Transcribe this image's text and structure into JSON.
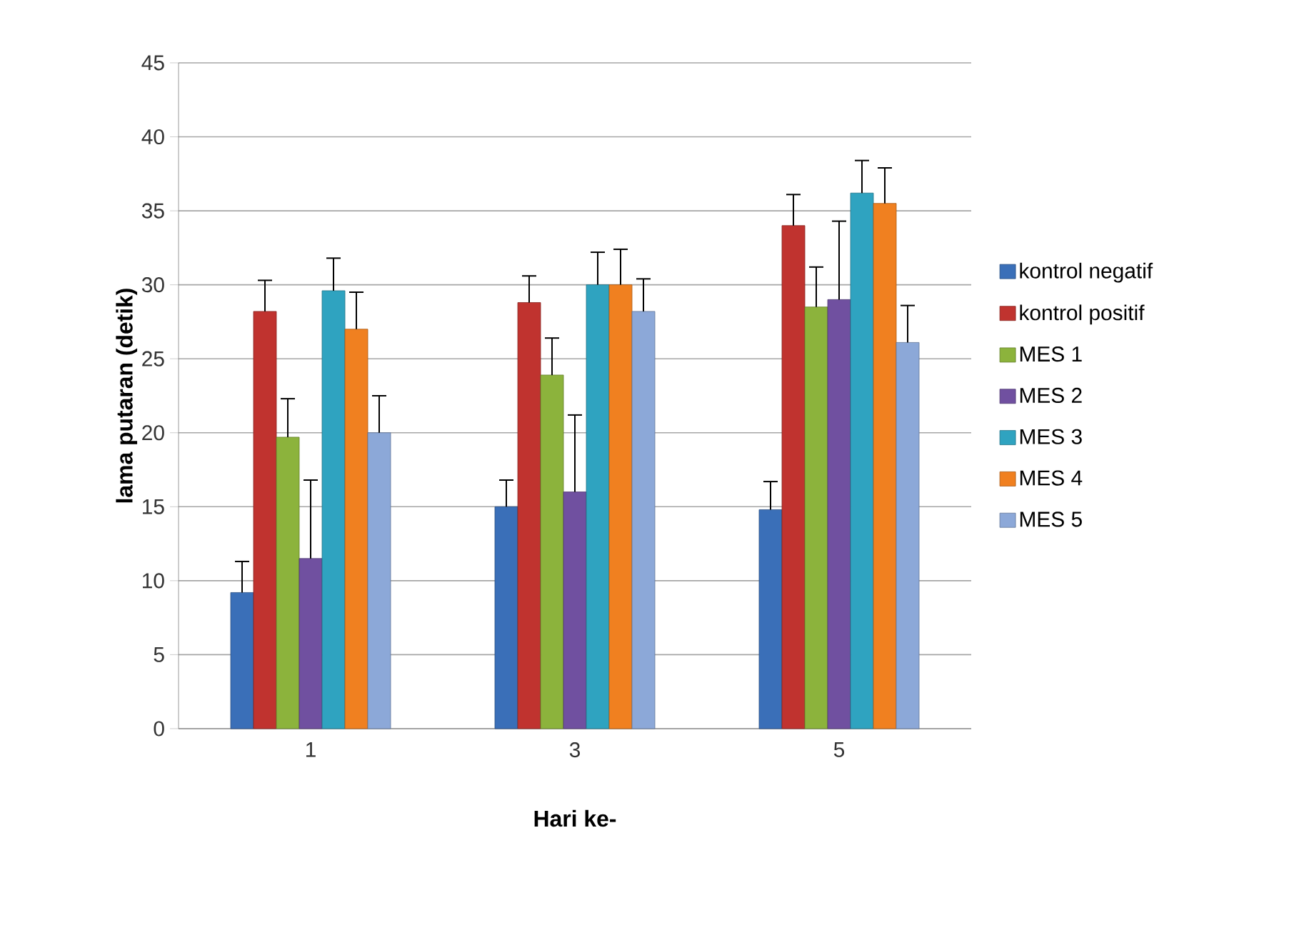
{
  "chart_data": {
    "type": "bar",
    "xlabel": "Hari ke-",
    "ylabel": "lama putaran  (detik)",
    "categories": [
      "1",
      "3",
      "5"
    ],
    "ylim": [
      0,
      45
    ],
    "yticks": [
      0,
      5,
      10,
      15,
      20,
      25,
      30,
      35,
      40,
      45
    ],
    "grid": "y",
    "legend": "right",
    "series": [
      {
        "name": "kontrol negatif",
        "color": "#3a6fb8",
        "values": [
          9.2,
          15,
          14.8
        ],
        "errors": [
          [
            9.2,
            11.3
          ],
          [
            15,
            16.8
          ],
          [
            14.8,
            16.7
          ]
        ]
      },
      {
        "name": "kontrol positif",
        "color": "#c0332f",
        "values": [
          28.2,
          28.8,
          34
        ],
        "errors": [
          [
            28.2,
            30.3
          ],
          [
            28.8,
            30.6
          ],
          [
            34,
            36.1
          ]
        ]
      },
      {
        "name": "MES 1",
        "color": "#8cb33c",
        "values": [
          19.7,
          23.9,
          28.5
        ],
        "errors": [
          [
            19.7,
            22.3
          ],
          [
            23.9,
            26.4
          ],
          [
            28.5,
            31.2
          ]
        ]
      },
      {
        "name": "MES 2",
        "color": "#7050a0",
        "values": [
          11.5,
          16,
          29
        ],
        "errors": [
          [
            11.5,
            16.8
          ],
          [
            16,
            21.2
          ],
          [
            29,
            34.3
          ]
        ]
      },
      {
        "name": "MES 3",
        "color": "#2fa3c0",
        "values": [
          29.6,
          30,
          36.2
        ],
        "errors": [
          [
            29.6,
            31.8
          ],
          [
            30,
            32.2
          ],
          [
            36.2,
            38.4
          ]
        ]
      },
      {
        "name": "MES 4",
        "color": "#f08020",
        "values": [
          27,
          30,
          35.5
        ],
        "errors": [
          [
            27,
            29.5
          ],
          [
            30,
            32.4
          ],
          [
            35.5,
            37.9
          ]
        ]
      },
      {
        "name": "MES 5",
        "color": "#8ca8d8",
        "values": [
          20,
          28.2,
          26.1
        ],
        "errors": [
          [
            20,
            22.5
          ],
          [
            28.2,
            30.4
          ],
          [
            26.1,
            28.6
          ]
        ]
      }
    ]
  }
}
